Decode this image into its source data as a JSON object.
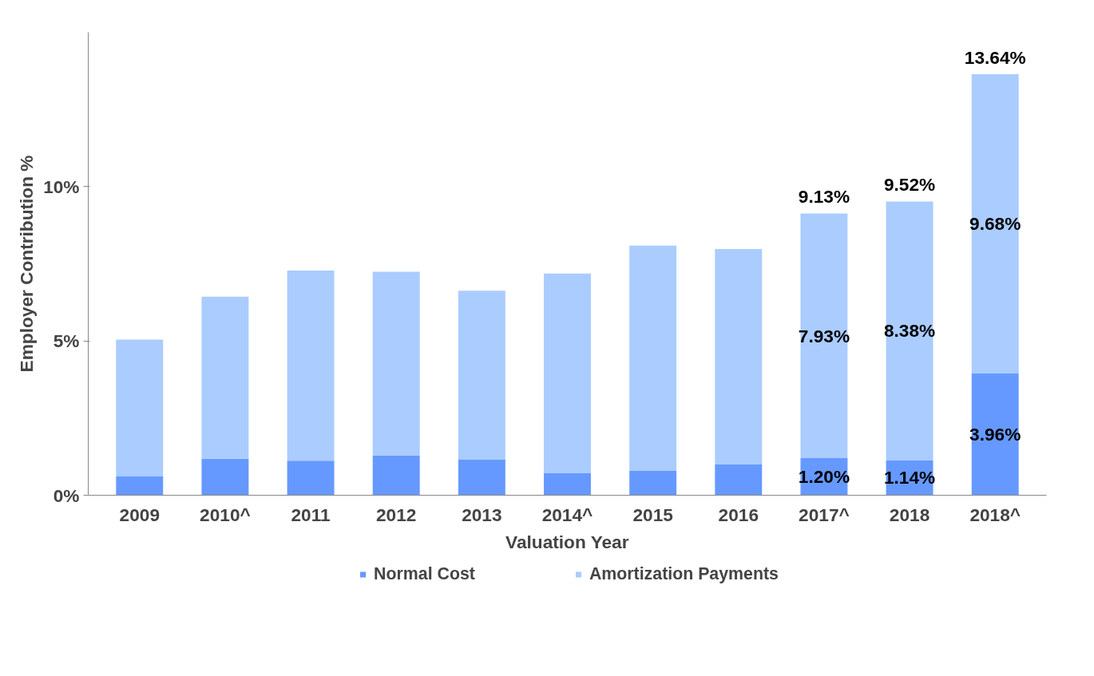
{
  "chart_data": {
    "type": "bar",
    "stacked": true,
    "xlabel": "Valuation Year",
    "ylabel": "Employer Contribution %",
    "categories": [
      "2009",
      "2010^",
      "2011",
      "2012",
      "2013",
      "2014^",
      "2015",
      "2016",
      "2017^",
      "2018",
      "2018^"
    ],
    "series": [
      {
        "name": "Normal Cost",
        "color": "#6699ff",
        "values": [
          0.61,
          1.18,
          1.12,
          1.29,
          1.15,
          0.71,
          0.8,
          1.01,
          1.2,
          1.14,
          3.96
        ],
        "value_labels": [
          null,
          null,
          null,
          null,
          null,
          null,
          null,
          null,
          "1.20%",
          "1.14%",
          "3.96%"
        ]
      },
      {
        "name": "Amortization Payments",
        "color": "#aaccff",
        "values": [
          4.43,
          5.25,
          6.16,
          5.95,
          5.48,
          6.47,
          7.29,
          6.97,
          7.93,
          8.38,
          9.68
        ],
        "value_labels": [
          null,
          null,
          null,
          null,
          null,
          null,
          null,
          null,
          "7.93%",
          "8.38%",
          "9.68%"
        ]
      }
    ],
    "totals": [
      null,
      null,
      null,
      null,
      null,
      null,
      null,
      null,
      "9.13%",
      "9.52%",
      "13.64%"
    ],
    "ylim": [
      0,
      15
    ],
    "yticks": [
      {
        "value": 0,
        "label": "0%"
      },
      {
        "value": 5,
        "label": "5%"
      },
      {
        "value": 10,
        "label": "10%"
      }
    ],
    "grid": false,
    "legend": "bottom"
  }
}
